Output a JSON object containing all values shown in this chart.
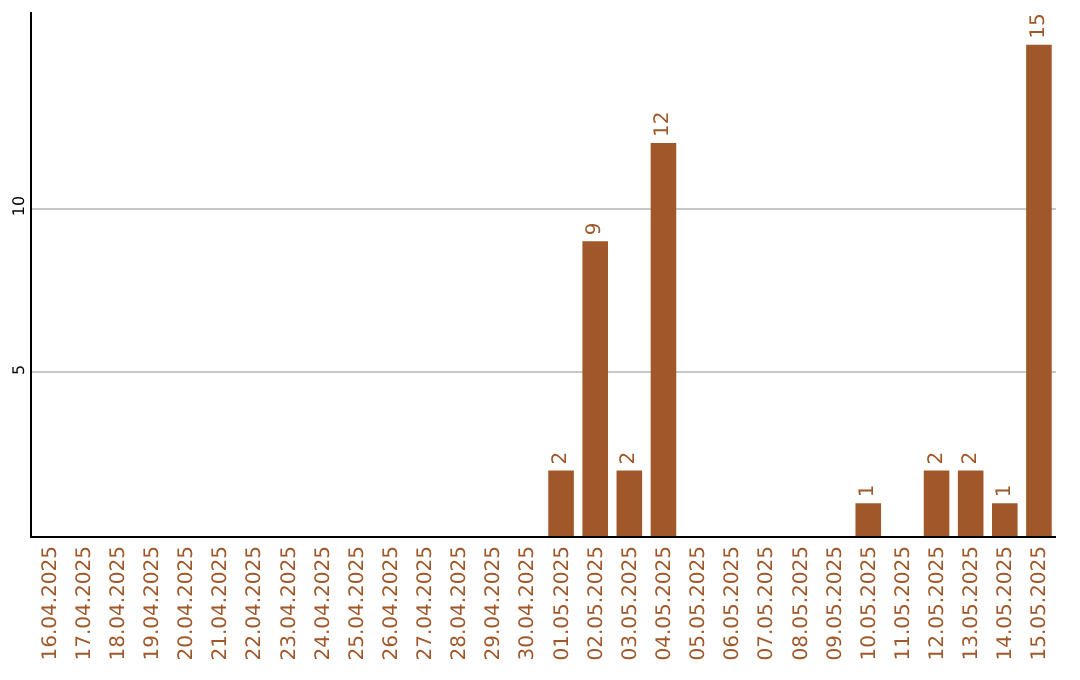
{
  "chart_data": {
    "type": "bar",
    "categories": [
      "16.04.2025",
      "17.04.2025",
      "18.04.2025",
      "19.04.2025",
      "20.04.2025",
      "21.04.2025",
      "22.04.2025",
      "23.04.2025",
      "24.04.2025",
      "25.04.2025",
      "26.04.2025",
      "27.04.2025",
      "28.04.2025",
      "29.04.2025",
      "30.04.2025",
      "01.05.2025",
      "02.05.2025",
      "03.05.2025",
      "04.05.2025",
      "05.05.2025",
      "06.05.2025",
      "07.05.2025",
      "08.05.2025",
      "09.05.2025",
      "10.05.2025",
      "11.05.2025",
      "12.05.2025",
      "13.05.2025",
      "14.05.2025",
      "15.05.2025"
    ],
    "values": [
      0,
      0,
      0,
      0,
      0,
      0,
      0,
      0,
      0,
      0,
      0,
      0,
      0,
      0,
      0,
      2,
      9,
      2,
      12,
      0,
      0,
      0,
      0,
      0,
      1,
      0,
      2,
      2,
      1,
      15
    ],
    "value_labels": [
      null,
      null,
      null,
      null,
      null,
      null,
      null,
      null,
      null,
      null,
      null,
      null,
      null,
      null,
      null,
      "2",
      "9",
      "2",
      "12",
      null,
      null,
      null,
      null,
      null,
      "1",
      null,
      "2",
      "2",
      "1",
      "15"
    ],
    "color": "#a0582a",
    "ylim": [
      0,
      16
    ],
    "yticks": [
      5,
      10
    ],
    "grid": "y",
    "legend": false
  }
}
